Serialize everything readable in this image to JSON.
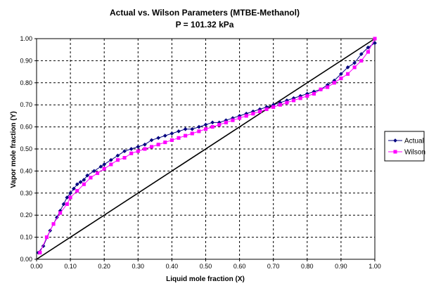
{
  "chart_data": {
    "type": "scatter",
    "title": "Actual vs. Wilson Parameters (MTBE-Methanol)",
    "subtitle": "P = 101.32 kPa",
    "xlabel": "Liquid mole fraction (X)",
    "ylabel": "Vapor mole fraction (Y)",
    "xlim": [
      0,
      1
    ],
    "ylim": [
      0,
      1
    ],
    "xticks": [
      "0.00",
      "0.10",
      "0.20",
      "0.30",
      "0.40",
      "0.50",
      "0.60",
      "0.70",
      "0.80",
      "0.90",
      "1.00"
    ],
    "yticks": [
      "0.00",
      "0.10",
      "0.20",
      "0.30",
      "0.40",
      "0.50",
      "0.60",
      "0.70",
      "0.80",
      "0.90",
      "1.00"
    ],
    "grid": true,
    "legend_position": "right",
    "reference_line": {
      "x": [
        0,
        1
      ],
      "y": [
        0,
        1
      ],
      "color": "#000000"
    },
    "series": [
      {
        "name": "Actual",
        "color": "#000080",
        "marker": "diamond",
        "x": [
          0.005,
          0.02,
          0.04,
          0.06,
          0.07,
          0.08,
          0.09,
          0.1,
          0.11,
          0.12,
          0.13,
          0.14,
          0.15,
          0.17,
          0.19,
          0.2,
          0.22,
          0.24,
          0.26,
          0.28,
          0.3,
          0.32,
          0.34,
          0.36,
          0.38,
          0.4,
          0.42,
          0.44,
          0.46,
          0.48,
          0.5,
          0.52,
          0.54,
          0.56,
          0.58,
          0.6,
          0.62,
          0.64,
          0.66,
          0.68,
          0.7,
          0.72,
          0.74,
          0.76,
          0.78,
          0.8,
          0.82,
          0.84,
          0.86,
          0.88,
          0.9,
          0.92,
          0.94,
          0.96,
          0.98,
          1.0
        ],
        "y": [
          0.03,
          0.06,
          0.13,
          0.19,
          0.22,
          0.25,
          0.28,
          0.3,
          0.32,
          0.34,
          0.35,
          0.36,
          0.38,
          0.4,
          0.42,
          0.43,
          0.45,
          0.47,
          0.49,
          0.5,
          0.51,
          0.52,
          0.54,
          0.55,
          0.56,
          0.57,
          0.58,
          0.59,
          0.59,
          0.6,
          0.61,
          0.62,
          0.62,
          0.63,
          0.64,
          0.65,
          0.66,
          0.67,
          0.68,
          0.69,
          0.7,
          0.71,
          0.72,
          0.73,
          0.74,
          0.75,
          0.76,
          0.77,
          0.79,
          0.81,
          0.84,
          0.87,
          0.89,
          0.93,
          0.96,
          0.98
        ]
      },
      {
        "name": "Wilson",
        "color": "#ff00ff",
        "marker": "square",
        "x": [
          0.01,
          0.03,
          0.05,
          0.07,
          0.09,
          0.1,
          0.12,
          0.14,
          0.16,
          0.18,
          0.2,
          0.22,
          0.24,
          0.26,
          0.28,
          0.3,
          0.32,
          0.34,
          0.36,
          0.38,
          0.4,
          0.42,
          0.44,
          0.46,
          0.48,
          0.5,
          0.52,
          0.54,
          0.56,
          0.58,
          0.6,
          0.62,
          0.64,
          0.66,
          0.68,
          0.7,
          0.72,
          0.74,
          0.76,
          0.78,
          0.8,
          0.82,
          0.84,
          0.86,
          0.88,
          0.9,
          0.92,
          0.94,
          0.96,
          0.98,
          1.0
        ],
        "y": [
          0.03,
          0.1,
          0.16,
          0.21,
          0.25,
          0.28,
          0.31,
          0.34,
          0.37,
          0.39,
          0.41,
          0.43,
          0.45,
          0.46,
          0.48,
          0.49,
          0.5,
          0.51,
          0.52,
          0.53,
          0.54,
          0.55,
          0.56,
          0.57,
          0.58,
          0.59,
          0.6,
          0.61,
          0.62,
          0.63,
          0.64,
          0.65,
          0.66,
          0.67,
          0.68,
          0.69,
          0.7,
          0.71,
          0.72,
          0.73,
          0.74,
          0.75,
          0.77,
          0.78,
          0.8,
          0.82,
          0.84,
          0.87,
          0.9,
          0.94,
          1.0
        ]
      }
    ]
  }
}
